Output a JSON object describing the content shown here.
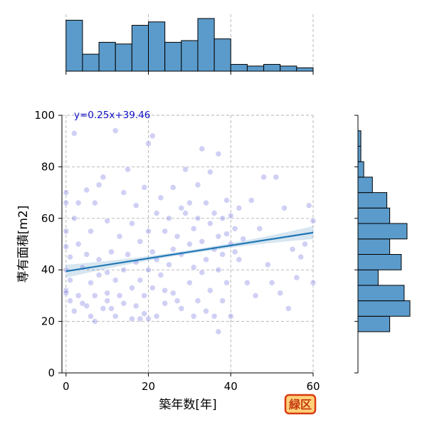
{
  "badge": {
    "label": "緑区",
    "color": "#c43a10",
    "fill": "#ffd27a"
  },
  "chart_data": {
    "type": "scatter",
    "title": "",
    "xlabel": "築年数[年]",
    "ylabel": "専有面積[m2]",
    "xlim": [
      -1,
      60
    ],
    "ylim": [
      0,
      100
    ],
    "xticks": [
      0,
      20,
      40,
      60
    ],
    "yticks": [
      0,
      20,
      40,
      60,
      80,
      100
    ],
    "grid": true,
    "regression": {
      "label": "y=0.25x+39.46",
      "slope": 0.25,
      "intercept": 39.46,
      "x_range": [
        0,
        60
      ],
      "ci_halfwidth_at_ends": 2.5,
      "color": "#1f77b4"
    },
    "point_color": "#7878e1",
    "bar_color": "#5b9bcb",
    "x_marginal_histogram": {
      "bin_edges": [
        0,
        4,
        8,
        12,
        16,
        20,
        24,
        28,
        32,
        36,
        40,
        44,
        48,
        52,
        56,
        60
      ],
      "counts": [
        30,
        10,
        17,
        16,
        27,
        29,
        17,
        18,
        31,
        19,
        4,
        3,
        4,
        3,
        2
      ]
    },
    "y_marginal_histogram": {
      "bin_edges": [
        16,
        22,
        28,
        34,
        40,
        46,
        52,
        58,
        64,
        70,
        76,
        82,
        88,
        94,
        100
      ],
      "counts": [
        11,
        18,
        16,
        7,
        15,
        11,
        17,
        11,
        10,
        5,
        2,
        1,
        1,
        0
      ]
    },
    "points": [
      [
        0,
        32
      ],
      [
        0,
        31
      ],
      [
        0,
        40
      ],
      [
        0,
        55
      ],
      [
        0,
        66
      ],
      [
        0,
        70
      ],
      [
        0,
        49
      ],
      [
        1,
        45
      ],
      [
        1,
        36
      ],
      [
        1,
        28
      ],
      [
        2,
        24
      ],
      [
        2,
        60
      ],
      [
        2,
        93
      ],
      [
        3,
        66
      ],
      [
        3,
        50
      ],
      [
        3,
        30
      ],
      [
        4,
        27
      ],
      [
        4,
        41
      ],
      [
        5,
        46
      ],
      [
        5,
        71
      ],
      [
        5,
        26
      ],
      [
        6,
        22
      ],
      [
        6,
        35
      ],
      [
        6,
        55
      ],
      [
        7,
        20
      ],
      [
        7,
        30
      ],
      [
        7,
        66
      ],
      [
        8,
        38
      ],
      [
        8,
        44
      ],
      [
        8,
        73
      ],
      [
        9,
        25
      ],
      [
        9,
        76
      ],
      [
        10,
        28
      ],
      [
        10,
        39
      ],
      [
        10,
        31
      ],
      [
        10,
        59
      ],
      [
        11,
        25
      ],
      [
        11,
        47
      ],
      [
        12,
        94
      ],
      [
        12,
        36
      ],
      [
        12,
        22
      ],
      [
        13,
        30
      ],
      [
        13,
        53
      ],
      [
        14,
        40
      ],
      [
        14,
        70
      ],
      [
        14,
        27
      ],
      [
        15,
        79
      ],
      [
        15,
        46
      ],
      [
        16,
        21
      ],
      [
        16,
        33
      ],
      [
        16,
        58
      ],
      [
        17,
        26
      ],
      [
        17,
        43
      ],
      [
        17,
        65
      ],
      [
        18,
        21
      ],
      [
        18,
        36
      ],
      [
        18,
        51
      ],
      [
        19,
        30
      ],
      [
        19,
        72
      ],
      [
        19,
        23
      ],
      [
        20,
        21
      ],
      [
        20,
        40
      ],
      [
        20,
        89
      ],
      [
        20,
        55
      ],
      [
        21,
        92
      ],
      [
        21,
        47
      ],
      [
        21,
        33
      ],
      [
        22,
        62
      ],
      [
        22,
        22
      ],
      [
        22,
        44
      ],
      [
        23,
        38
      ],
      [
        23,
        68
      ],
      [
        24,
        55
      ],
      [
        24,
        27
      ],
      [
        24,
        32
      ],
      [
        25,
        60
      ],
      [
        25,
        42
      ],
      [
        26,
        48
      ],
      [
        26,
        72
      ],
      [
        26,
        31
      ],
      [
        27,
        28
      ],
      [
        27,
        53
      ],
      [
        28,
        64
      ],
      [
        28,
        46
      ],
      [
        28,
        25
      ],
      [
        29,
        62
      ],
      [
        29,
        79
      ],
      [
        30,
        50
      ],
      [
        30,
        35
      ],
      [
        30,
        66
      ],
      [
        31,
        22
      ],
      [
        31,
        56
      ],
      [
        31,
        41
      ],
      [
        32,
        60
      ],
      [
        32,
        73
      ],
      [
        32,
        28
      ],
      [
        33,
        87
      ],
      [
        33,
        51
      ],
      [
        33,
        39
      ],
      [
        34,
        44
      ],
      [
        34,
        66
      ],
      [
        34,
        24
      ],
      [
        35,
        58
      ],
      [
        35,
        78
      ],
      [
        35,
        32
      ],
      [
        36,
        48
      ],
      [
        36,
        62
      ],
      [
        36,
        22
      ],
      [
        37,
        85
      ],
      [
        37,
        53
      ],
      [
        37,
        40
      ],
      [
        37,
        16
      ],
      [
        38,
        60
      ],
      [
        38,
        46
      ],
      [
        38,
        28
      ],
      [
        39,
        54
      ],
      [
        39,
        67
      ],
      [
        39,
        35
      ],
      [
        40,
        61
      ],
      [
        40,
        50
      ],
      [
        40,
        22
      ],
      [
        41,
        47
      ],
      [
        41,
        56
      ],
      [
        42,
        64
      ],
      [
        42,
        44
      ],
      [
        43,
        52
      ],
      [
        44,
        35
      ],
      [
        45,
        67
      ],
      [
        46,
        30
      ],
      [
        47,
        56
      ],
      [
        48,
        76
      ],
      [
        49,
        42
      ],
      [
        50,
        35
      ],
      [
        51,
        76
      ],
      [
        52,
        31
      ],
      [
        53,
        64
      ],
      [
        54,
        25
      ],
      [
        55,
        48
      ],
      [
        56,
        37
      ],
      [
        57,
        45
      ],
      [
        58,
        50
      ],
      [
        59,
        65
      ],
      [
        60,
        35
      ],
      [
        60,
        59
      ]
    ]
  }
}
